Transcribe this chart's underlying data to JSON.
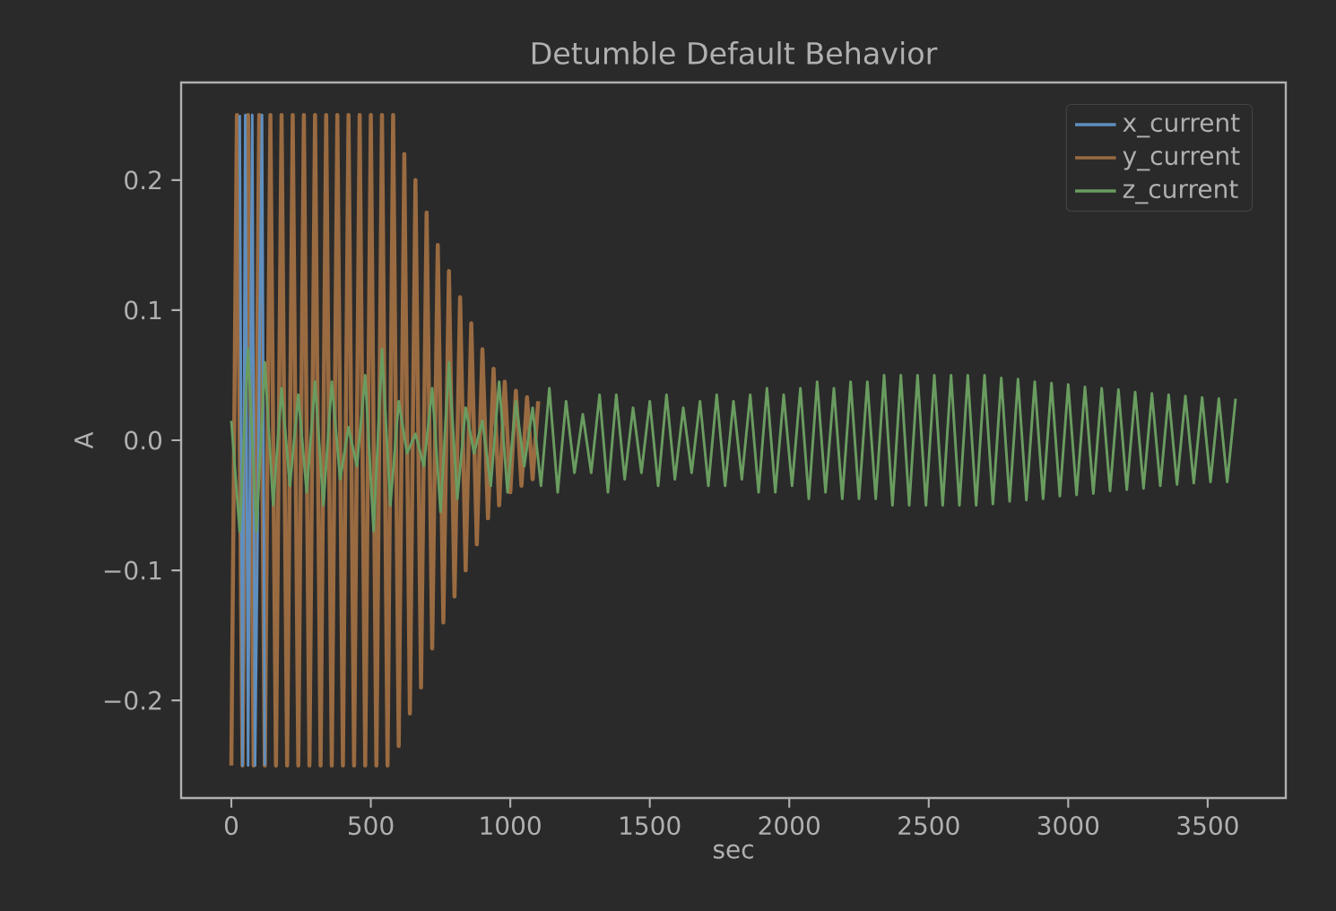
{
  "chart_data": {
    "type": "line",
    "title": "Detumble Default Behavior",
    "xlabel": "sec",
    "ylabel": "A",
    "xlim": [
      -180,
      3780
    ],
    "ylim": [
      -0.275,
      0.275
    ],
    "xticks": [
      0,
      500,
      1000,
      1500,
      2000,
      2500,
      3000,
      3500
    ],
    "yticks": [
      {
        "value": -0.2,
        "label": "−0.2"
      },
      {
        "value": -0.1,
        "label": "−0.1"
      },
      {
        "value": 0,
        "label": "0.0"
      },
      {
        "value": 0.1,
        "label": "0.1"
      },
      {
        "value": 0.2,
        "label": "0.2"
      }
    ],
    "legend": "top right",
    "grid": false,
    "marker": "none",
    "line_style": "solid",
    "series": [
      {
        "name": "x_current",
        "color": "#5f8fbf",
        "x": [
          30,
          40,
          50,
          60,
          75,
          85,
          110,
          120
        ],
        "values": [
          0.25,
          -0.25,
          0.25,
          -0.25,
          0.25,
          -0.25,
          0.25,
          -0.25
        ]
      },
      {
        "name": "y_current",
        "color": "#9a6b41",
        "x": [
          0,
          20,
          40,
          60,
          80,
          100,
          120,
          140,
          160,
          180,
          200,
          220,
          240,
          260,
          280,
          300,
          320,
          340,
          360,
          380,
          400,
          420,
          440,
          460,
          480,
          500,
          520,
          540,
          560,
          580,
          600,
          620,
          640,
          660,
          680,
          700,
          720,
          740,
          760,
          780,
          800,
          820,
          840,
          860,
          880,
          900,
          920,
          940,
          960,
          980,
          1000,
          1020,
          1040,
          1060,
          1080,
          1100
        ],
        "values": [
          -0.25,
          0.25,
          -0.25,
          0.25,
          -0.25,
          0.25,
          -0.25,
          0.25,
          -0.25,
          0.25,
          -0.25,
          0.25,
          -0.25,
          0.25,
          -0.25,
          0.25,
          -0.25,
          0.25,
          -0.25,
          0.25,
          -0.25,
          0.25,
          -0.25,
          0.25,
          -0.25,
          0.25,
          -0.25,
          0.25,
          -0.25,
          0.25,
          -0.235,
          0.22,
          -0.21,
          0.2,
          -0.19,
          0.175,
          -0.16,
          0.15,
          -0.14,
          0.13,
          -0.12,
          0.11,
          -0.1,
          0.09,
          -0.08,
          0.07,
          -0.06,
          0.055,
          -0.05,
          0.045,
          -0.04,
          0.038,
          -0.035,
          0.033,
          -0.03,
          0.03
        ]
      },
      {
        "name": "z_current",
        "color": "#6a9c60",
        "x": [
          0,
          30,
          60,
          90,
          120,
          150,
          180,
          210,
          240,
          270,
          300,
          330,
          360,
          390,
          420,
          450,
          480,
          510,
          540,
          570,
          600,
          630,
          660,
          690,
          720,
          750,
          780,
          810,
          840,
          870,
          900,
          930,
          960,
          990,
          1020,
          1050,
          1080,
          1110,
          1140,
          1170,
          1200,
          1230,
          1260,
          1290,
          1320,
          1350,
          1380,
          1410,
          1440,
          1470,
          1500,
          1530,
          1560,
          1590,
          1620,
          1650,
          1680,
          1710,
          1740,
          1770,
          1800,
          1830,
          1860,
          1890,
          1920,
          1950,
          1980,
          2010,
          2040,
          2070,
          2100,
          2130,
          2160,
          2190,
          2220,
          2250,
          2280,
          2310,
          2340,
          2370,
          2400,
          2430,
          2460,
          2490,
          2520,
          2550,
          2580,
          2610,
          2640,
          2670,
          2700,
          2730,
          2760,
          2790,
          2820,
          2850,
          2880,
          2910,
          2940,
          2970,
          3000,
          3030,
          3060,
          3090,
          3120,
          3150,
          3180,
          3210,
          3240,
          3270,
          3300,
          3330,
          3360,
          3390,
          3420,
          3450,
          3480,
          3510,
          3540,
          3570,
          3600
        ],
        "values": [
          0.015,
          -0.07,
          0.07,
          -0.07,
          0.06,
          -0.05,
          0.04,
          -0.035,
          0.035,
          -0.04,
          0.045,
          -0.05,
          0.045,
          -0.03,
          0.01,
          -0.02,
          0.05,
          -0.07,
          0.07,
          -0.05,
          0.03,
          -0.01,
          0.005,
          -0.02,
          0.04,
          -0.055,
          0.06,
          -0.045,
          0.025,
          -0.01,
          0.015,
          -0.035,
          0.045,
          -0.04,
          0.03,
          -0.02,
          0.025,
          -0.035,
          0.04,
          -0.04,
          0.03,
          -0.025,
          0.02,
          -0.025,
          0.035,
          -0.04,
          0.035,
          -0.03,
          0.025,
          -0.025,
          0.03,
          -0.035,
          0.035,
          -0.03,
          0.025,
          -0.025,
          0.03,
          -0.035,
          0.035,
          -0.035,
          0.03,
          -0.03,
          0.035,
          -0.04,
          0.04,
          -0.04,
          0.035,
          -0.035,
          0.04,
          -0.045,
          0.045,
          -0.04,
          0.04,
          -0.045,
          0.045,
          -0.045,
          0.045,
          -0.045,
          0.05,
          -0.05,
          0.05,
          -0.05,
          0.05,
          -0.05,
          0.05,
          -0.05,
          0.05,
          -0.05,
          0.05,
          -0.05,
          0.05,
          -0.049,
          0.048,
          -0.047,
          0.047,
          -0.046,
          0.045,
          -0.045,
          0.044,
          -0.043,
          0.043,
          -0.042,
          0.041,
          -0.041,
          0.04,
          -0.039,
          0.039,
          -0.038,
          0.037,
          -0.037,
          0.036,
          -0.035,
          0.035,
          -0.034,
          0.034,
          -0.033,
          0.033,
          -0.032,
          0.032,
          -0.032,
          0.032
        ]
      }
    ]
  }
}
